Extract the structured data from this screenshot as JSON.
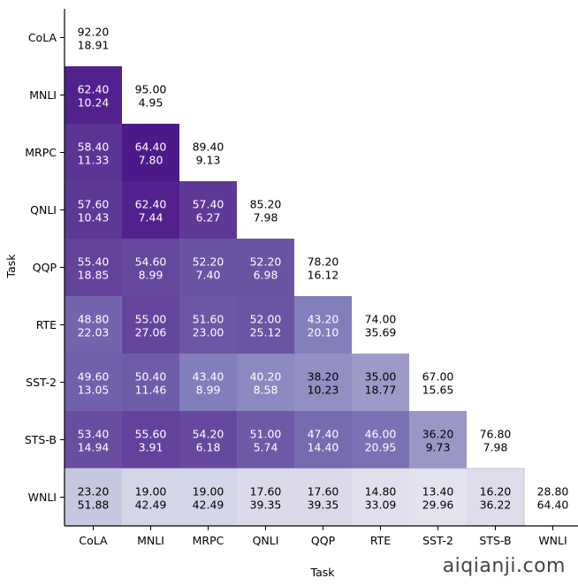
{
  "chart_data": {
    "type": "heatmap",
    "title": "",
    "xlabel": "Task",
    "ylabel": "Task",
    "x_categories": [
      "CoLA",
      "MNLI",
      "MRPC",
      "QNLI",
      "QQP",
      "RTE",
      "SST-2",
      "STS-B",
      "WNLI"
    ],
    "y_categories": [
      "CoLA",
      "MNLI",
      "MRPC",
      "QNLI",
      "QQP",
      "RTE",
      "SST-2",
      "STS-B",
      "WNLI"
    ],
    "colormap": "Purples",
    "color_range": [
      0,
      70
    ],
    "diagonal_uncolored": true,
    "lower_triangle_only": true,
    "cells": [
      [
        {
          "value": 92.2,
          "std": 18.91
        }
      ],
      [
        {
          "value": 62.4,
          "std": 10.24
        },
        {
          "value": 95.0,
          "std": 4.95
        }
      ],
      [
        {
          "value": 58.4,
          "std": 11.33
        },
        {
          "value": 64.4,
          "std": 7.8
        },
        {
          "value": 89.4,
          "std": 9.13
        }
      ],
      [
        {
          "value": 57.6,
          "std": 10.43
        },
        {
          "value": 62.4,
          "std": 7.44
        },
        {
          "value": 57.4,
          "std": 6.27
        },
        {
          "value": 85.2,
          "std": 7.98
        }
      ],
      [
        {
          "value": 55.4,
          "std": 18.85
        },
        {
          "value": 54.6,
          "std": 8.99
        },
        {
          "value": 52.2,
          "std": 7.4
        },
        {
          "value": 52.2,
          "std": 6.98
        },
        {
          "value": 78.2,
          "std": 16.12
        }
      ],
      [
        {
          "value": 48.8,
          "std": 22.03
        },
        {
          "value": 55.0,
          "std": 27.06
        },
        {
          "value": 51.6,
          "std": 23.0
        },
        {
          "value": 52.0,
          "std": 25.12
        },
        {
          "value": 43.2,
          "std": 20.1
        },
        {
          "value": 74.0,
          "std": 35.69
        }
      ],
      [
        {
          "value": 49.6,
          "std": 13.05
        },
        {
          "value": 50.4,
          "std": 11.46
        },
        {
          "value": 43.4,
          "std": 8.99
        },
        {
          "value": 40.2,
          "std": 8.58
        },
        {
          "value": 38.2,
          "std": 10.23
        },
        {
          "value": 35.0,
          "std": 18.77
        },
        {
          "value": 67.0,
          "std": 15.65
        }
      ],
      [
        {
          "value": 53.4,
          "std": 14.94
        },
        {
          "value": 55.6,
          "std": 3.91
        },
        {
          "value": 54.2,
          "std": 6.18
        },
        {
          "value": 51.0,
          "std": 5.74
        },
        {
          "value": 47.4,
          "std": 14.4
        },
        {
          "value": 46.0,
          "std": 20.95
        },
        {
          "value": 36.2,
          "std": 9.73
        },
        {
          "value": 76.8,
          "std": 7.98
        }
      ],
      [
        {
          "value": 23.2,
          "std": 51.88
        },
        {
          "value": 19.0,
          "std": 42.49
        },
        {
          "value": 19.0,
          "std": 42.49
        },
        {
          "value": 17.6,
          "std": 39.35
        },
        {
          "value": 17.6,
          "std": 39.35
        },
        {
          "value": 14.8,
          "std": 33.09
        },
        {
          "value": 13.4,
          "std": 29.96
        },
        {
          "value": 16.2,
          "std": 36.22
        },
        {
          "value": 28.8,
          "std": 64.4
        }
      ]
    ],
    "grid": false,
    "legend": "none"
  },
  "watermark": "aiqianji.com"
}
